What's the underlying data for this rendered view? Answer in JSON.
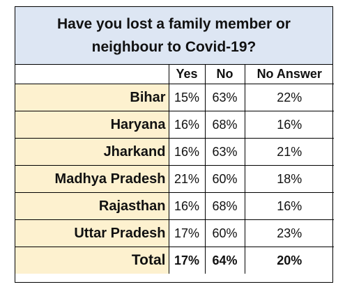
{
  "chart_data": {
    "type": "table",
    "title": "Have you lost a family member or neighbour to Covid-19?",
    "columns": [
      "Yes",
      "No",
      "No Answer"
    ],
    "rows": [
      {
        "label": "Bihar",
        "values": [
          "15%",
          "63%",
          "22%"
        ]
      },
      {
        "label": "Haryana",
        "values": [
          "16%",
          "68%",
          "16%"
        ]
      },
      {
        "label": "Jharkand",
        "values": [
          "16%",
          "63%",
          "21%"
        ]
      },
      {
        "label": "Madhya Pradesh",
        "values": [
          "21%",
          "60%",
          "18%"
        ]
      },
      {
        "label": "Rajasthan",
        "values": [
          "16%",
          "68%",
          "16%"
        ]
      },
      {
        "label": "Uttar Pradesh",
        "values": [
          "17%",
          "60%",
          "23%"
        ]
      }
    ],
    "total": {
      "label": "Total",
      "values": [
        "17%",
        "64%",
        "20%"
      ]
    }
  }
}
